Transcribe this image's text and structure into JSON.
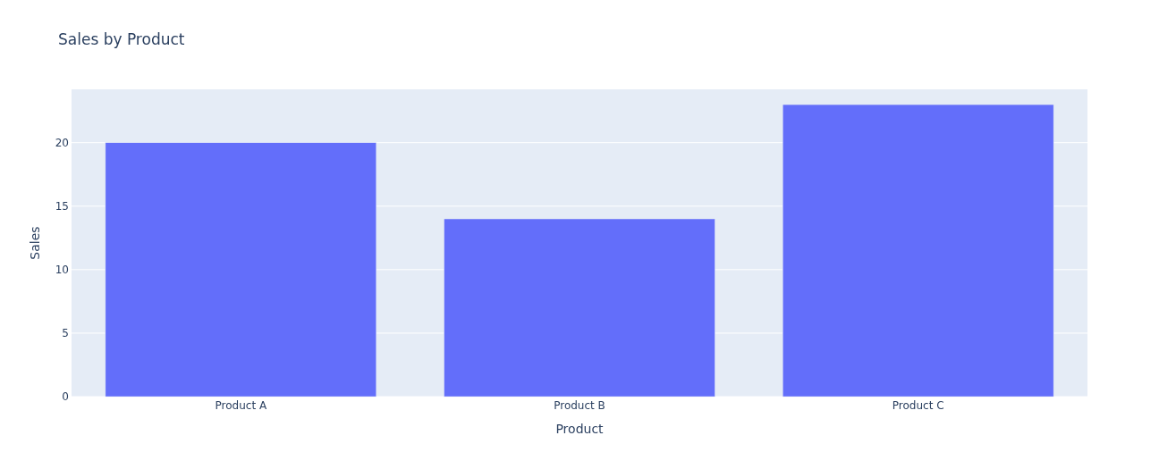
{
  "chart_data": {
    "type": "bar",
    "title": "Sales by Product",
    "xlabel": "Product",
    "ylabel": "Sales",
    "categories": [
      "Product A",
      "Product B",
      "Product C"
    ],
    "values": [
      20,
      14,
      23
    ],
    "color": "#636efa",
    "ylim": [
      0,
      24.2
    ],
    "yticks": [
      0,
      5,
      10,
      15,
      20
    ],
    "grid": "y"
  }
}
